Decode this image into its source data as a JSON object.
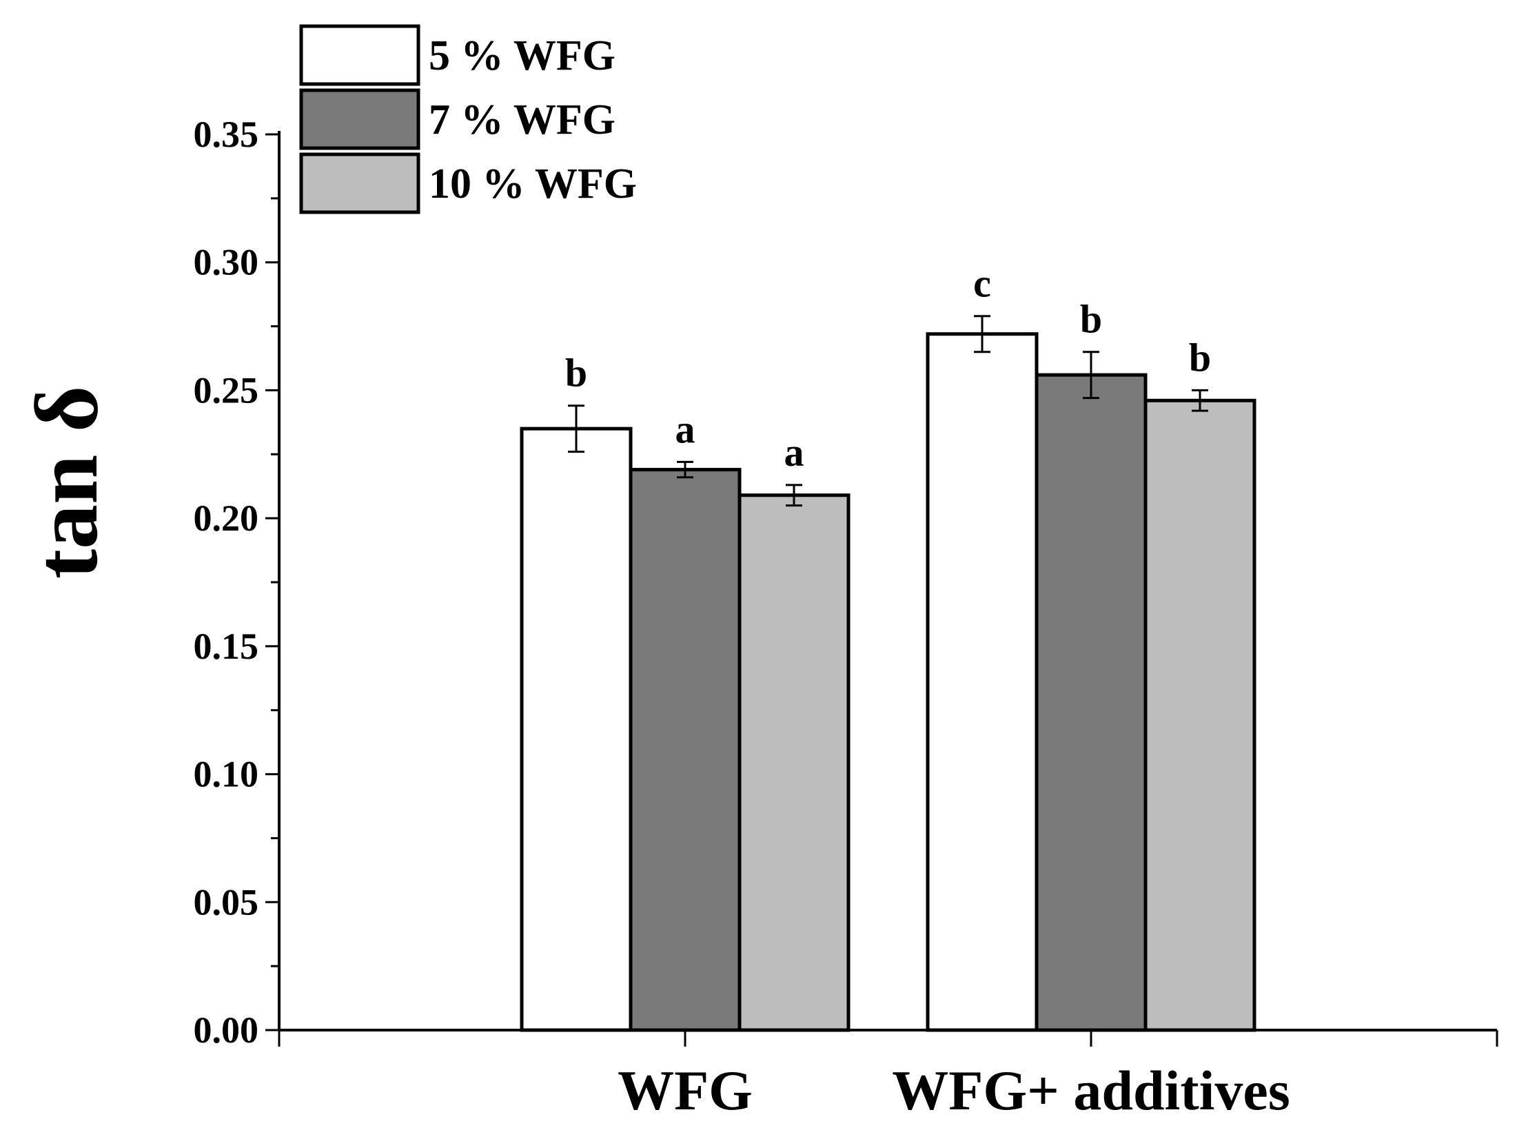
{
  "chart_data": {
    "type": "bar",
    "title": "",
    "xlabel": "",
    "ylabel": "tan δ",
    "categories": [
      "WFG",
      "WFG+ additives"
    ],
    "ylim": [
      0,
      0.35
    ],
    "yticks": [
      "0.00",
      "0.05",
      "0.10",
      "0.15",
      "0.20",
      "0.25",
      "0.30",
      "0.35"
    ],
    "legend_position": "top-left",
    "series": [
      {
        "name": "5 % WFG",
        "color": "#ffffff",
        "values": [
          0.235,
          0.272
        ],
        "errors": [
          0.009,
          0.007
        ],
        "labels": [
          "b",
          "c"
        ]
      },
      {
        "name": "7 % WFG",
        "color": "#7a7a7a",
        "values": [
          0.219,
          0.256
        ],
        "errors": [
          0.003,
          0.009
        ],
        "labels": [
          "a",
          "b"
        ]
      },
      {
        "name": "10 % WFG",
        "color": "#bdbdbd",
        "values": [
          0.209,
          0.246
        ],
        "errors": [
          0.004,
          0.004
        ],
        "labels": [
          "a",
          "b"
        ]
      }
    ]
  }
}
